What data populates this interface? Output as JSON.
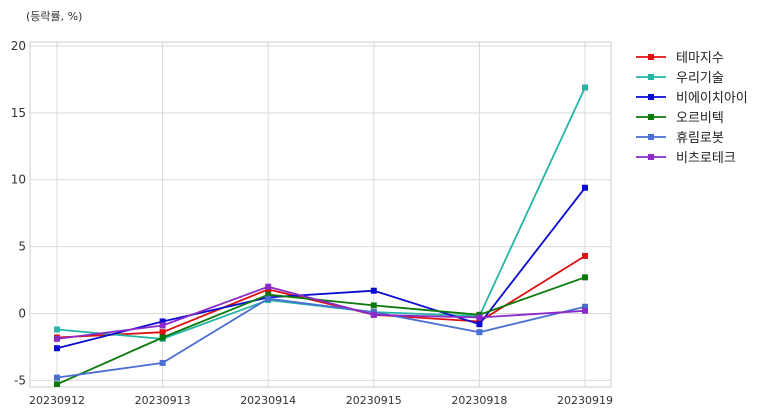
{
  "chart_data": {
    "type": "line",
    "unit_label": "(등락률, %)",
    "title": "",
    "xlabel": "",
    "ylabel": "",
    "x": [
      "20230912",
      "20230913",
      "20230914",
      "20230915",
      "20230918",
      "20230919"
    ],
    "ylim": [
      -5.5,
      20.3
    ],
    "yticks": [
      -5,
      0,
      5,
      10,
      15,
      20
    ],
    "grid": true,
    "legend_position": "outside-right",
    "series": [
      {
        "name": "테마지수",
        "color": "#dd1111",
        "values": [
          -1.8,
          -1.4,
          1.8,
          -0.1,
          -0.6,
          4.3
        ]
      },
      {
        "name": "우리기술",
        "color": "#26b5a5",
        "values": [
          -1.2,
          -1.9,
          1.0,
          0.1,
          -0.2,
          16.9
        ]
      },
      {
        "name": "비에이치아이",
        "color": "#0a0ad2",
        "values": [
          -2.6,
          -0.6,
          1.2,
          1.7,
          -0.8,
          9.4
        ]
      },
      {
        "name": "오르비텍",
        "color": "#0b7a0b",
        "values": [
          -5.3,
          -1.8,
          1.4,
          0.6,
          -0.1,
          2.7
        ]
      },
      {
        "name": "휴림로봇",
        "color": "#4a6ed2",
        "values": [
          -4.8,
          -3.7,
          1.1,
          0.1,
          -1.4,
          0.5
        ]
      },
      {
        "name": "비츠로테크",
        "color": "#8a2ac8",
        "values": [
          -1.9,
          -0.9,
          2.0,
          -0.1,
          -0.3,
          0.2
        ]
      }
    ]
  }
}
